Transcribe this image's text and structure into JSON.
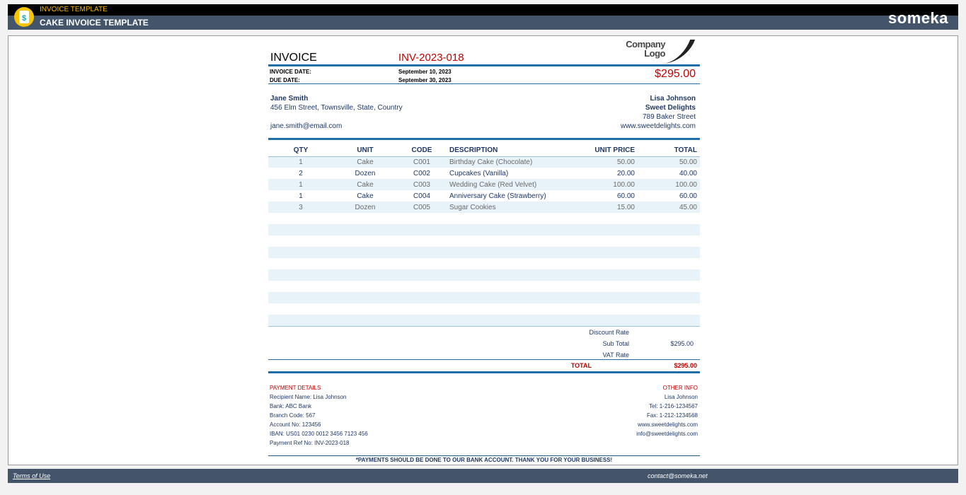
{
  "app": {
    "tag": "INVOICE TEMPLATE",
    "title": "CAKE INVOICE TEMPLATE",
    "brand": "someka",
    "icon": "invoice-dollar-icon"
  },
  "invoice": {
    "heading": "INVOICE",
    "number": "INV-2023-018",
    "logo": "Company Logo",
    "date_label": "INVOICE DATE:",
    "date": "September 10, 2023",
    "due_label": "DUE DATE:",
    "due": "September 30, 2023",
    "amount": "$295.00"
  },
  "bill_to": {
    "name": "Jane Smith",
    "address": "456 Elm Street, Townsville, State, Country",
    "email": "jane.smith@email.com"
  },
  "from": {
    "name": "Lisa Johnson",
    "company": "Sweet Delights",
    "address": "789 Baker Street",
    "website": "www.sweetdelights.com"
  },
  "table": {
    "headers": [
      "QTY",
      "UNIT",
      "CODE",
      "DESCRIPTION",
      "UNIT PRICE",
      "TOTAL"
    ],
    "rows": [
      [
        "1",
        "Cake",
        "C001",
        "Birthday Cake (Chocolate)",
        "50.00",
        "50.00"
      ],
      [
        "2",
        "Dozen",
        "C002",
        "Cupcakes (Vanilla)",
        "20.00",
        "40.00"
      ],
      [
        "1",
        "Cake",
        "C003",
        "Wedding Cake (Red Velvet)",
        "100.00",
        "100.00"
      ],
      [
        "1",
        "Cake",
        "C004",
        "Anniversary Cake (Strawberry)",
        "60.00",
        "60.00"
      ],
      [
        "3",
        "Dozen",
        "C005",
        "Sugar Cookies",
        "15.00",
        "45.00"
      ]
    ]
  },
  "totals": {
    "discount_label": "Discount Rate",
    "subtotal_label": "Sub Total",
    "subtotal": "$295.00",
    "vat_label": "VAT Rate",
    "total_label": "TOTAL",
    "total": "$295.00"
  },
  "payment": {
    "title": "PAYMENT DETAILS",
    "lines": [
      "Recipient Name: Lisa Johnson",
      "Bank: ABC Bank",
      "Branch Code: 567",
      "Account No: 123456",
      "IBAN: US01 0230 0012 3456 7123 456",
      "Payment Ref No: INV-2023-018"
    ]
  },
  "other": {
    "title": "OTHER INFO",
    "lines": [
      "Lisa Johnson",
      "Tel: 1-216-1234567",
      "Fax: 1-212-1234568",
      "www.sweetdelights.com",
      "info@sweetdelights.com"
    ]
  },
  "note": "*PAYMENTS SHOULD BE DONE TO OUR BANK ACCOUNT. THANK YOU FOR YOUR BUSINESS!",
  "footer": {
    "terms": "Terms of Use",
    "contact": "contact@someka.net"
  }
}
